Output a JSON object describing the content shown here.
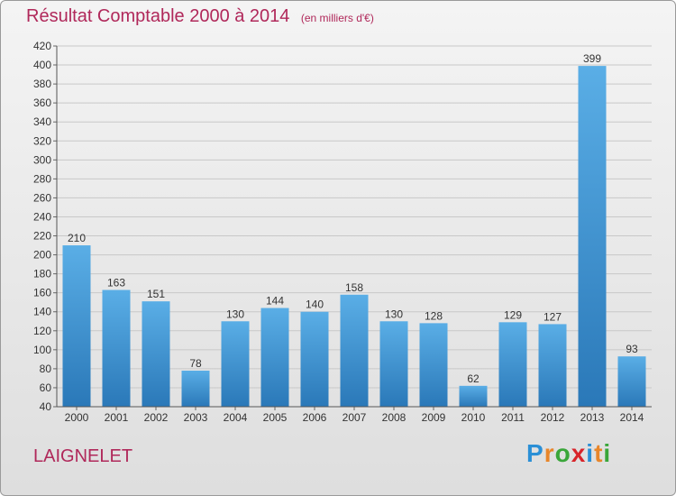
{
  "title": "Résultat Comptable 2000 à 2014",
  "subtitle": "(en milliers d'€)",
  "commune": "LAIGNELET",
  "brand": {
    "text": "Proxiti",
    "letters": [
      {
        "ch": "P",
        "color": "#2a8fd6"
      },
      {
        "ch": "r",
        "color": "#e8862a"
      },
      {
        "ch": "o",
        "color": "#3aa63a"
      },
      {
        "ch": "x",
        "color": "#d8242a"
      },
      {
        "ch": "i",
        "color": "#2a8fd6"
      },
      {
        "ch": "t",
        "color": "#e8862a"
      },
      {
        "ch": "i",
        "color": "#3aa63a"
      }
    ]
  },
  "colors": {
    "title": "#b0285a",
    "bar_top": "#5aaee6",
    "bar_bottom": "#2a78b8"
  },
  "chart_data": {
    "type": "bar",
    "categories": [
      "2000",
      "2001",
      "2002",
      "2003",
      "2004",
      "2005",
      "2006",
      "2007",
      "2008",
      "2009",
      "2010",
      "2011",
      "2012",
      "2013",
      "2014"
    ],
    "values": [
      210,
      163,
      151,
      78,
      130,
      144,
      140,
      158,
      130,
      128,
      62,
      129,
      127,
      399,
      93
    ],
    "ylim": [
      40,
      420
    ],
    "yticks": [
      40,
      60,
      80,
      100,
      120,
      140,
      160,
      180,
      200,
      220,
      240,
      260,
      280,
      300,
      320,
      340,
      360,
      380,
      400,
      420
    ],
    "grid": true,
    "legend": "none"
  }
}
